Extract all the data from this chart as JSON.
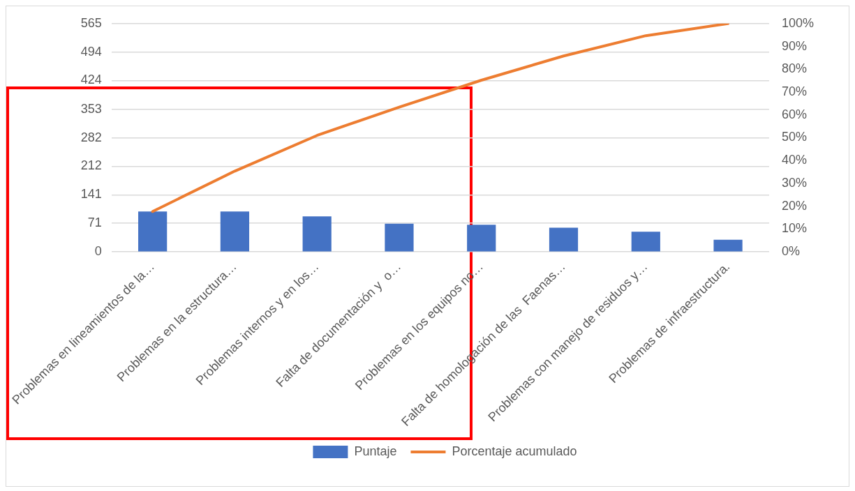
{
  "chart_data": {
    "type": "bar",
    "categories": [
      "Problemas en lineamientos de la…",
      "Problemas en la estructura…",
      "Problemas internos y en los…",
      "Falta de documentación y  o…",
      "Problemas en los equipos no…",
      "Falta de homologación de las  Faenas…",
      "Problemas con manejo de residuos y…",
      "Problemas de infraestructura."
    ],
    "series": [
      {
        "name": "Puntaje",
        "color": "#4472c4",
        "values": [
          100,
          100,
          88,
          70,
          67,
          60,
          50,
          30
        ]
      },
      {
        "name": "Porcentaje acumulado",
        "type": "line",
        "axis": "y2",
        "color": "#ed7d31",
        "marker": "none",
        "line_style": "solid",
        "values": [
          17.7,
          35.4,
          51.0,
          63.4,
          75.2,
          85.8,
          94.7,
          100
        ]
      }
    ],
    "ylim": [
      0,
      565
    ],
    "yticks": [
      0,
      71,
      141,
      212,
      282,
      353,
      424,
      494,
      565
    ],
    "y2lim": [
      0,
      100
    ],
    "y2ticks": [
      {
        "value": 0,
        "label": "0%"
      },
      {
        "value": 10,
        "label": "10%"
      },
      {
        "value": 20,
        "label": "20%"
      },
      {
        "value": 30,
        "label": "30%"
      },
      {
        "value": 40,
        "label": "40%"
      },
      {
        "value": 50,
        "label": "50%"
      },
      {
        "value": 60,
        "label": "60%"
      },
      {
        "value": 70,
        "label": "70%"
      },
      {
        "value": 80,
        "label": "80%"
      },
      {
        "value": 90,
        "label": "90%"
      },
      {
        "value": 100,
        "label": "100%"
      }
    ],
    "grid": "y",
    "legend": "bottom"
  }
}
